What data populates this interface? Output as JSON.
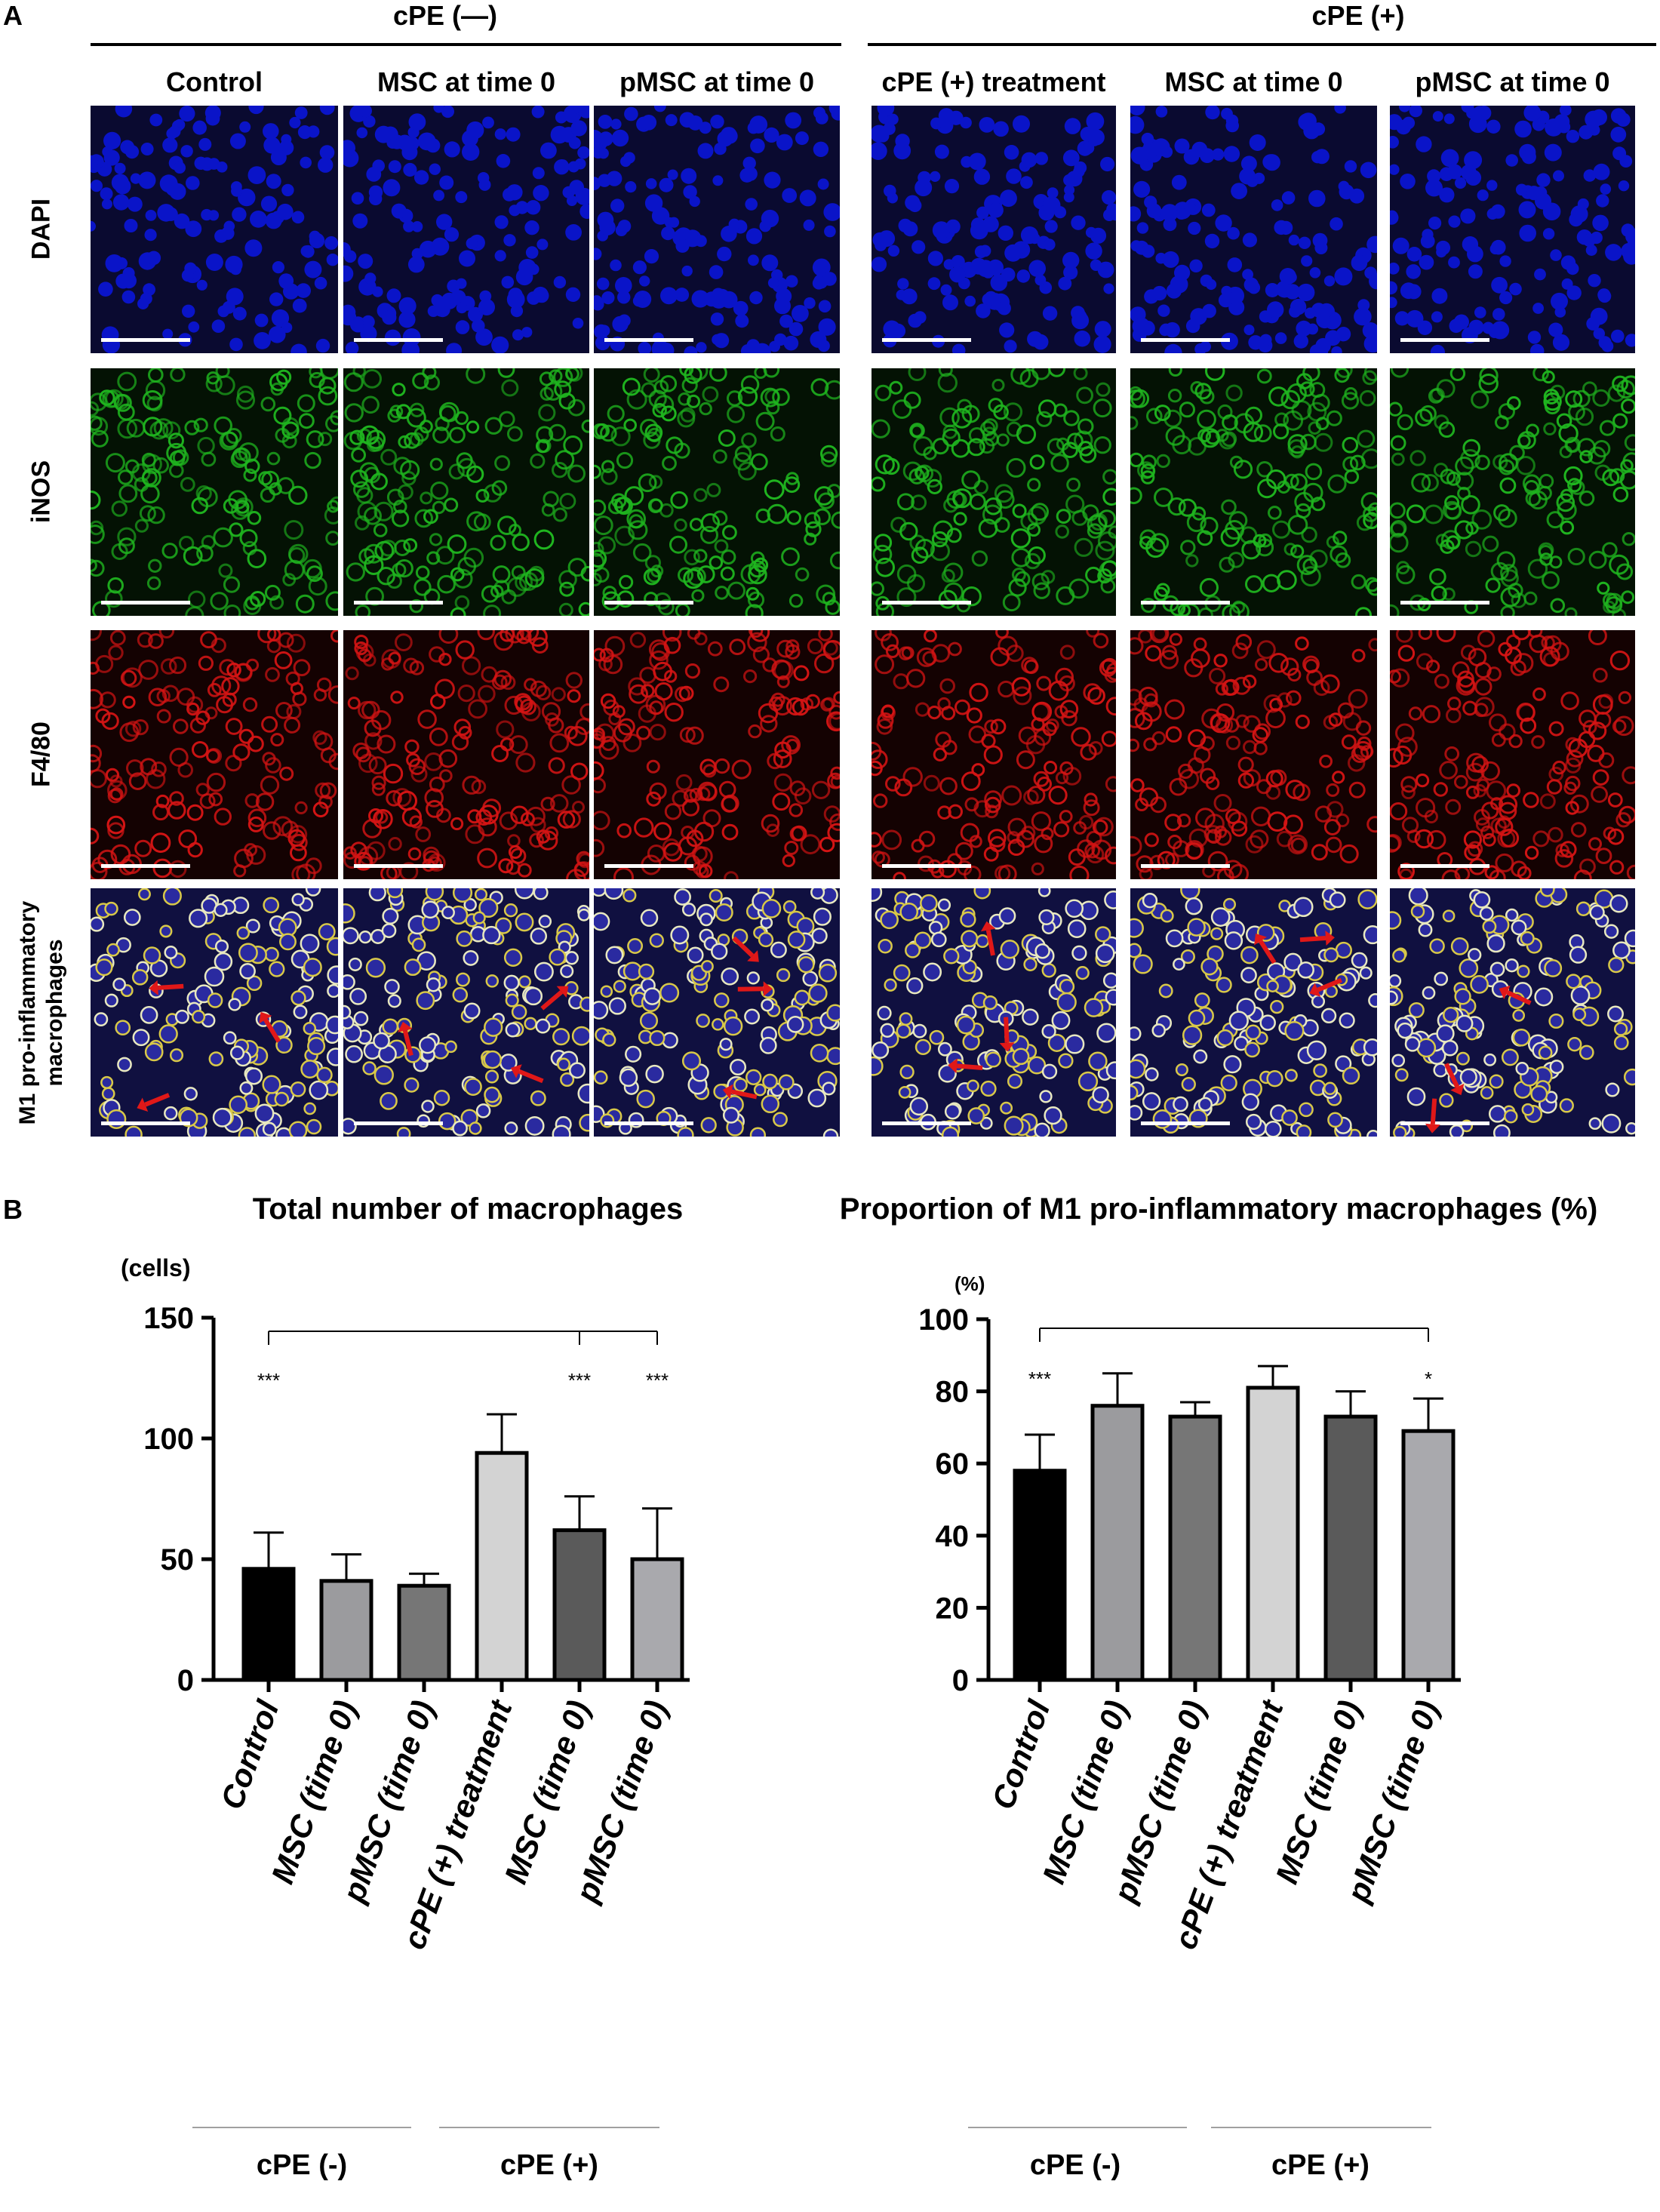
{
  "panel_a": {
    "label": "A",
    "groups": [
      "cPE (—)",
      "cPE (+)"
    ],
    "columns": [
      "Control",
      "MSC at time 0",
      "pMSC at time 0",
      "cPE (+) treatment",
      "MSC at time 0",
      "pMSC at time 0"
    ],
    "rows": [
      "DAPI",
      "iNOS",
      "F4/80",
      "M1 pro-inflammatory macrophages"
    ],
    "stain_colors": {
      "DAPI": "#0a14c8",
      "iNOS": "#1fb51f",
      "F4/80": "#d41414",
      "merge": "#2a2aa0"
    },
    "arrow_color": "#e01818"
  },
  "panel_b": {
    "label": "B",
    "group_labels": [
      "cPE (-)",
      "cPE (+)"
    ]
  },
  "chart_data": [
    {
      "type": "bar",
      "title": "Total number of macrophages",
      "ylabel": "(cells)",
      "ylim": [
        0,
        150
      ],
      "yticks": [
        "0",
        "50",
        "100",
        "150"
      ],
      "categories": [
        "Control",
        "MSC (time 0)",
        "pMSC (time 0)",
        "cPE (+) treatment",
        "MSC (time 0)",
        "pMSC (time 0)"
      ],
      "values": [
        46,
        41,
        39,
        94,
        62,
        50
      ],
      "errors": [
        15,
        11,
        5,
        16,
        14,
        21
      ],
      "bar_colors": [
        "#000000",
        "#9b9b9e",
        "#767676",
        "#d3d3d3",
        "#5a5a5a",
        "#a9a9ad"
      ],
      "significance": [
        "***",
        "",
        "",
        "",
        "***",
        "***"
      ]
    },
    {
      "type": "bar",
      "title": "Proportion of M1 pro-inflammatory macrophages (%)",
      "ylabel": "(%)",
      "ylim": [
        0,
        100
      ],
      "yticks": [
        "0",
        "20",
        "40",
        "60",
        "80",
        "100"
      ],
      "categories": [
        "Control",
        "MSC (time 0)",
        "pMSC (time 0)",
        "cPE (+) treatment",
        "MSC (time 0)",
        "pMSC (time 0)"
      ],
      "values": [
        58,
        76,
        73,
        81,
        73,
        69
      ],
      "errors": [
        10,
        9,
        4,
        6,
        7,
        9
      ],
      "bar_colors": [
        "#000000",
        "#9b9b9e",
        "#767676",
        "#d3d3d3",
        "#5a5a5a",
        "#a9a9ad"
      ],
      "significance": [
        "***",
        "",
        "",
        "",
        "",
        "*"
      ]
    }
  ]
}
